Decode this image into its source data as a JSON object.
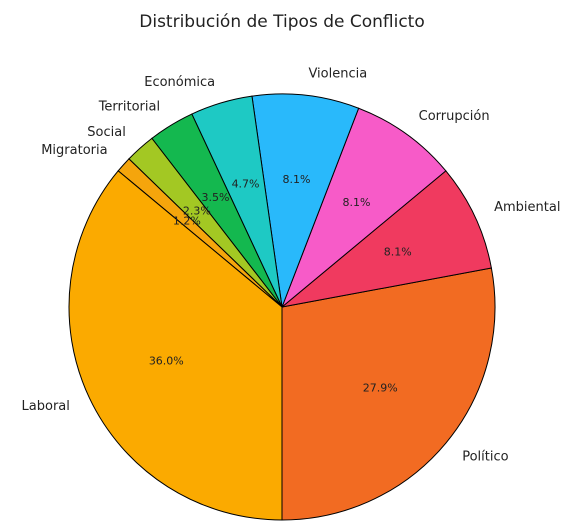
{
  "chart_data": {
    "type": "pie",
    "title": "Distribución de Tipos de Conflicto",
    "categories": [
      "Político",
      "Ambiental",
      "Corrupción",
      "Violencia",
      "Económica",
      "Territorial",
      "Social",
      "Migratoria",
      "Laboral"
    ],
    "values": [
      27.9,
      8.1,
      8.1,
      8.1,
      4.7,
      3.5,
      2.3,
      1.2,
      36.0
    ],
    "value_labels": [
      "27.9%",
      "8.1%",
      "8.1%",
      "8.1%",
      "4.7%",
      "3.5%",
      "2.3%",
      "1.2%",
      "36.0%"
    ],
    "colors": [
      "#f26b22",
      "#f03a5f",
      "#f75bc8",
      "#29b9fb",
      "#1ec9c4",
      "#14b84f",
      "#a3c823",
      "#f5a50c",
      "#fbaa00"
    ],
    "start_angle": -90
  }
}
